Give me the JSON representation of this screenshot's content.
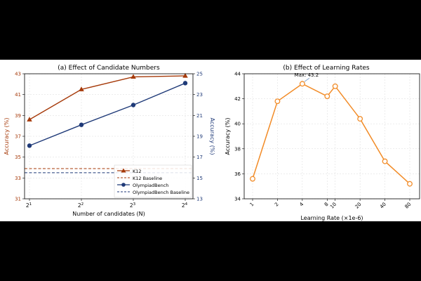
{
  "colors": {
    "k12": "#a63a0a",
    "olympiad": "#1f3a78",
    "lr": "#f28c28",
    "grid": "#d9d9d9"
  },
  "chart_data": [
    {
      "type": "line",
      "title": "(a) Effect of Candidate Numbers",
      "xlabel": "Number of candidates (N)",
      "x_ticks": [
        {
          "base": "2",
          "exp": "1"
        },
        {
          "base": "2",
          "exp": "2"
        },
        {
          "base": "2",
          "exp": "3"
        },
        {
          "base": "2",
          "exp": "4"
        }
      ],
      "y_left": {
        "label": "Accuracy (%)",
        "ylim": [
          31,
          43
        ],
        "ticks": [
          "31",
          "33",
          "35",
          "37",
          "39",
          "41",
          "43"
        ]
      },
      "y_right": {
        "label": "Accuracy (%)",
        "ylim": [
          13,
          25
        ],
        "ticks": [
          "13",
          "15",
          "17",
          "19",
          "21",
          "23",
          "25"
        ]
      },
      "series": [
        {
          "name": "K12",
          "axis": "left",
          "marker": "triangle",
          "values": [
            38.6,
            41.5,
            42.7,
            42.8
          ]
        },
        {
          "name": "OlympiadBench",
          "axis": "right",
          "marker": "circle",
          "values": [
            18.1,
            20.1,
            22.0,
            24.1
          ]
        }
      ],
      "baselines": [
        {
          "name": "K12 Baseline",
          "axis": "left",
          "value": 33.9
        },
        {
          "name": "OlympiadBench Baseline",
          "axis": "right",
          "value": 15.5
        }
      ],
      "legend": "bottom-right",
      "grid": true
    },
    {
      "type": "line",
      "title": "(b) Effect of Learning Rates",
      "xlabel": "Learning Rate (×1e-6)",
      "ylabel": "Accuracy (%)",
      "x": [
        1,
        2,
        4,
        8,
        10,
        20,
        40,
        80
      ],
      "x_tick_labels": [
        "1",
        "2",
        "4",
        "8",
        "10",
        "20",
        "40",
        "80"
      ],
      "x_scale": "log",
      "ylim": [
        34,
        44
      ],
      "y_ticks": [
        "34",
        "36",
        "38",
        "40",
        "42",
        "44"
      ],
      "values": [
        35.6,
        41.8,
        43.2,
        42.2,
        43.0,
        40.4,
        37.0,
        35.2
      ],
      "annotation": "Max: 43.2",
      "grid": true
    }
  ]
}
